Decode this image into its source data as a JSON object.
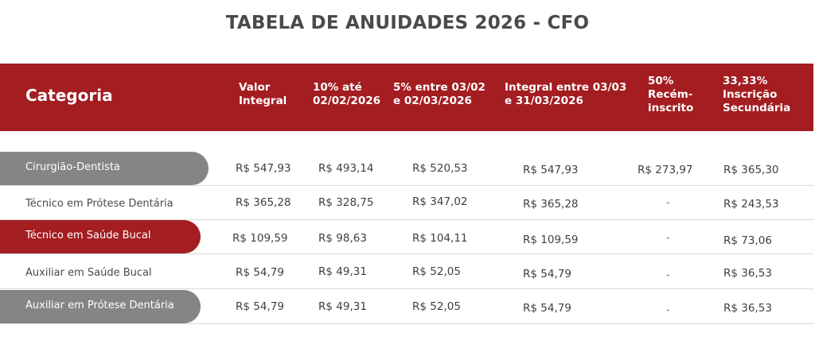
{
  "title": "TABELA DE ANUIDADES 2026 - CFO",
  "header": {
    "categoria": "Categoria",
    "col1": [
      "Valor",
      "Integral"
    ],
    "col2": [
      "10% até",
      "02/02/2026"
    ],
    "col3": [
      "5% entre 03/02",
      "e 02/03/2026"
    ],
    "col4": [
      "Integral entre 03/03",
      "e 31/03/2026"
    ],
    "col5": [
      "50%",
      "Recém-",
      "inscrito"
    ],
    "col6": [
      "33,33%",
      "Inscrição",
      "Secundária"
    ]
  },
  "colors": {
    "accent_red": "#a31d21",
    "pill_gray": "#858585",
    "text_dark": "#4a4a4a"
  },
  "rows": [
    {
      "categoria": "Cirurgião-Dentista",
      "valor_integral": "R$ 547,93",
      "ate_0202": "R$ 493,14",
      "entre_0302_0203": "R$ 520,53",
      "entre_0303_3103": "R$ 547,93",
      "recem_inscrito": "R$ 273,97",
      "inscricao_secundaria": "R$ 365,30"
    },
    {
      "categoria": "Técnico em Prótese Dentária",
      "valor_integral": "R$ 365,28",
      "ate_0202": "R$ 328,75",
      "entre_0302_0203": "R$ 347,02",
      "entre_0303_3103": "R$ 365,28",
      "recem_inscrito": "-",
      "inscricao_secundaria": "R$ 243,53"
    },
    {
      "categoria": "Técnico em Saúde Bucal",
      "valor_integral": "R$ 109,59",
      "ate_0202": "R$ 98,63",
      "entre_0302_0203": "R$ 104,11",
      "entre_0303_3103": "R$ 109,59",
      "recem_inscrito": "-",
      "inscricao_secundaria": "R$ 73,06"
    },
    {
      "categoria": "Auxiliar em Saúde Bucal",
      "valor_integral": "R$ 54,79",
      "ate_0202": "R$ 49,31",
      "entre_0302_0203": "R$ 52,05",
      "entre_0303_3103": "R$ 54,79",
      "recem_inscrito": "-",
      "inscricao_secundaria": "R$ 36,53"
    },
    {
      "categoria": "Auxiliar em Prótese Dentária",
      "valor_integral": "R$ 54,79",
      "ate_0202": "R$ 49,31",
      "entre_0302_0203": "R$ 52,05",
      "entre_0303_3103": "R$ 54,79",
      "recem_inscrito": "-",
      "inscricao_secundaria": "R$ 36,53"
    }
  ]
}
